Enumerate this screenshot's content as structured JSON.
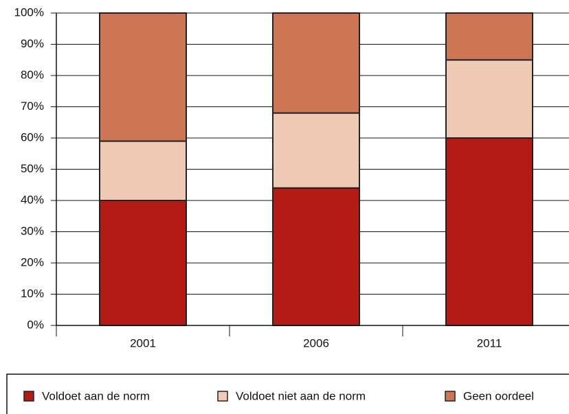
{
  "chart_data": {
    "type": "stacked_bar",
    "categories": [
      "2001",
      "2006",
      "2011"
    ],
    "series": [
      {
        "name": "Voldoet aan de norm",
        "color": "#b31b15",
        "values": [
          40,
          44,
          60
        ]
      },
      {
        "name": "Voldoet niet aan de norm",
        "color": "#efcab5",
        "values": [
          19,
          24,
          25
        ]
      },
      {
        "name": "Geen oordeel",
        "color": "#cd7656",
        "values": [
          41,
          32,
          15
        ]
      }
    ],
    "ylim": [
      0,
      100
    ],
    "yticks": [
      {
        "value": 0,
        "label": "0%"
      },
      {
        "value": 10,
        "label": "10%"
      },
      {
        "value": 20,
        "label": "20%"
      },
      {
        "value": 30,
        "label": "30%"
      },
      {
        "value": 40,
        "label": "40%"
      },
      {
        "value": 50,
        "label": "50%"
      },
      {
        "value": 60,
        "label": "60%"
      },
      {
        "value": 70,
        "label": "70%"
      },
      {
        "value": 80,
        "label": "80%"
      },
      {
        "value": 90,
        "label": "90%"
      },
      {
        "value": 100,
        "label": "100%"
      }
    ],
    "grid": true,
    "legend": "bottom"
  }
}
